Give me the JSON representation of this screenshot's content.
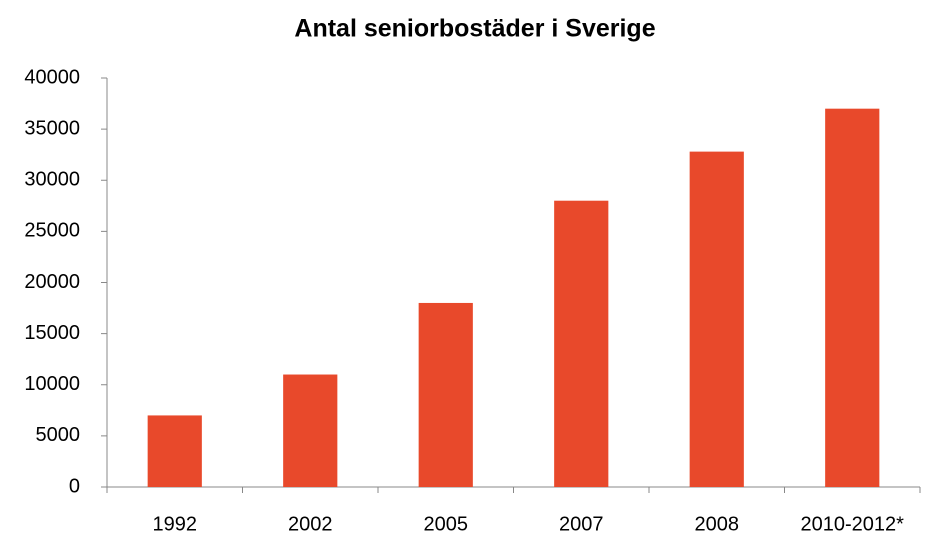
{
  "chart_data": {
    "type": "bar",
    "title": "Antal seniorbostäder i Sverige",
    "categories": [
      "1992",
      "2002",
      "2005",
      "2007",
      "2008",
      "2010-2012*"
    ],
    "values": [
      7000,
      11000,
      18000,
      28000,
      32800,
      37000
    ],
    "color": "#e8492b",
    "ylim": [
      0,
      40000
    ],
    "yticks": [
      0,
      5000,
      10000,
      15000,
      20000,
      25000,
      30000,
      35000,
      40000
    ],
    "grid": false
  }
}
